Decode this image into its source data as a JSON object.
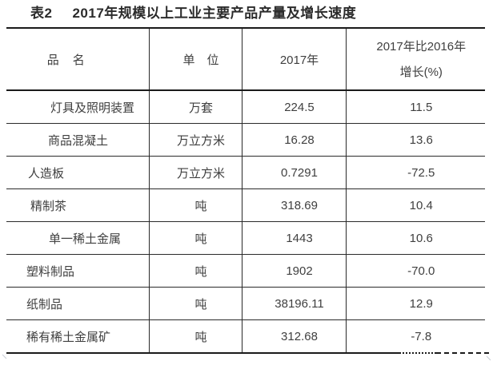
{
  "title": {
    "label": "表2",
    "text": "2017年规模以上工业主要产品产量及增长速度"
  },
  "table": {
    "headers": {
      "name": "品　名",
      "unit": "单　位",
      "y2017": "2017年",
      "growth_line1": "2017年比2016年",
      "growth_line2": "增长(%)"
    },
    "rows": [
      {
        "name": "灯具及照明装置",
        "unit": "万套",
        "y2017": "224.5",
        "growth": "11.5"
      },
      {
        "name": "商品混凝土",
        "unit": "万立方米",
        "y2017": "16.28",
        "growth": "13.6"
      },
      {
        "name": "人造板",
        "unit": "万立方米",
        "y2017": "0.7291",
        "growth": "-72.5"
      },
      {
        "name": "精制茶",
        "unit": "吨",
        "y2017": "318.69",
        "growth": "10.4"
      },
      {
        "name": "单一稀土金属",
        "unit": "吨",
        "y2017": "1443",
        "growth": "10.6"
      },
      {
        "name": "塑料制品",
        "unit": "吨",
        "y2017": "1902",
        "growth": "-70.0"
      },
      {
        "name": "纸制品",
        "unit": "吨",
        "y2017": "38196.11",
        "growth": "12.9"
      },
      {
        "name": "稀有稀土金属矿",
        "unit": "吨",
        "y2017": "312.68",
        "growth": "-7.8"
      }
    ]
  },
  "colors": {
    "background": "#ffffff",
    "body_text": "#3f3f3f",
    "title_text": "#2b2b2b",
    "rule_thick": "#1a1a1a",
    "rule_thin": "#2a2a2a"
  },
  "chart_data": {
    "type": "table",
    "title": "表2　2017年规模以上工业主要产品产量及增长速度",
    "columns": [
      "品名",
      "单位",
      "2017年",
      "2017年比2016年增长(%)"
    ],
    "rows": [
      [
        "灯具及照明装置",
        "万套",
        224.5,
        11.5
      ],
      [
        "商品混凝土",
        "万立方米",
        16.28,
        13.6
      ],
      [
        "人造板",
        "万立方米",
        0.7291,
        -72.5
      ],
      [
        "精制茶",
        "吨",
        318.69,
        10.4
      ],
      [
        "单一稀土金属",
        "吨",
        1443,
        10.6
      ],
      [
        "塑料制品",
        "吨",
        1902,
        -70.0
      ],
      [
        "纸制品",
        "吨",
        38196.11,
        12.9
      ],
      [
        "稀有稀土金属矿",
        "吨",
        312.68,
        -7.8
      ]
    ]
  }
}
